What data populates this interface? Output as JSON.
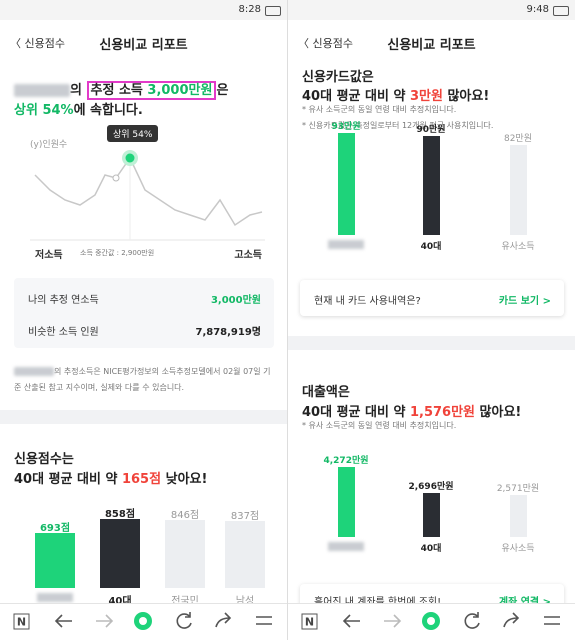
{
  "left": {
    "status_time": "8:28",
    "back": "신용점수",
    "title": "신용비교 리포트",
    "headline_1": {
      "lead": "의 ",
      "box_a": "추정 소득 ",
      "box_b": "3,000만원",
      "tail": "은"
    },
    "headline_2": {
      "percent": "상위 54%",
      "rest": "에 속합니다."
    },
    "chart": {
      "y_label": "(y)인원수",
      "tooltip": "상위 54%",
      "x_low": "저소득",
      "median": "소득 중간값 : 2,900만원",
      "x_high": "고소득"
    },
    "stats": [
      {
        "label": "나의 추정 연소득",
        "value": "3,000만원"
      },
      {
        "label": "비슷한 소득 인원",
        "value": "7,878,919명"
      }
    ],
    "footnote": "의 추정소득은 NICE평가정보의 소득추정모델에서 02월 07일 기준 산출된 참고 지수이며, 실제와 다를 수 있습니다.",
    "section": {
      "title": "신용점수는",
      "a": "40대 평균 대비 약 ",
      "diff": "165점",
      "b": " 낮아요!"
    },
    "bars": [
      {
        "value": 693,
        "value_label": "693점",
        "label": null
      },
      {
        "value": 858,
        "value_label": "858점",
        "label": "40대"
      },
      {
        "value": 846,
        "value_label": "846점",
        "label": "전국민"
      },
      {
        "value": 837,
        "value_label": "837점",
        "label": "남성"
      }
    ],
    "nav_logo": "N"
  },
  "right": {
    "status_time": "9:48",
    "back": "신용점수",
    "title": "신용비교 리포트",
    "card": {
      "title": "신용카드값은",
      "a": "40대 평균 대비 약 ",
      "diff": "3만원",
      "b": " 많아요!",
      "notes": [
        "* 유사 소득군의 동일 연령 대비 추정치입니다.",
        "* 신용카드값은 측정일로부터 12개월 평균 사용치입니다."
      ],
      "bars": [
        {
          "value": 93,
          "value_label": "93만원",
          "label": null
        },
        {
          "value": 90,
          "value_label": "90만원",
          "label": "40대"
        },
        {
          "value": 82,
          "value_label": "82만원",
          "label": "유사소득"
        }
      ],
      "row_text": "현재 내 카드 사용내역은?",
      "row_link": "카드 보기 >"
    },
    "loan": {
      "title": "대출액은",
      "a": "40대 평균 대비 약 ",
      "diff": "1,576만원",
      "b": " 많아요!",
      "notes": [
        "* 유사 소득군의 동일 연령 대비 추정치입니다."
      ],
      "bars": [
        {
          "value": 4272,
          "value_label": "4,272만원",
          "label": null
        },
        {
          "value": 2696,
          "value_label": "2,696만원",
          "label": "40대"
        },
        {
          "value": 2571,
          "value_label": "2,571만원",
          "label": "유사소득"
        }
      ],
      "row_text": "흩어진 내 계좌를 한번에 조회!",
      "row_link": "계좌 연결 >"
    },
    "nav_logo": "N"
  }
}
